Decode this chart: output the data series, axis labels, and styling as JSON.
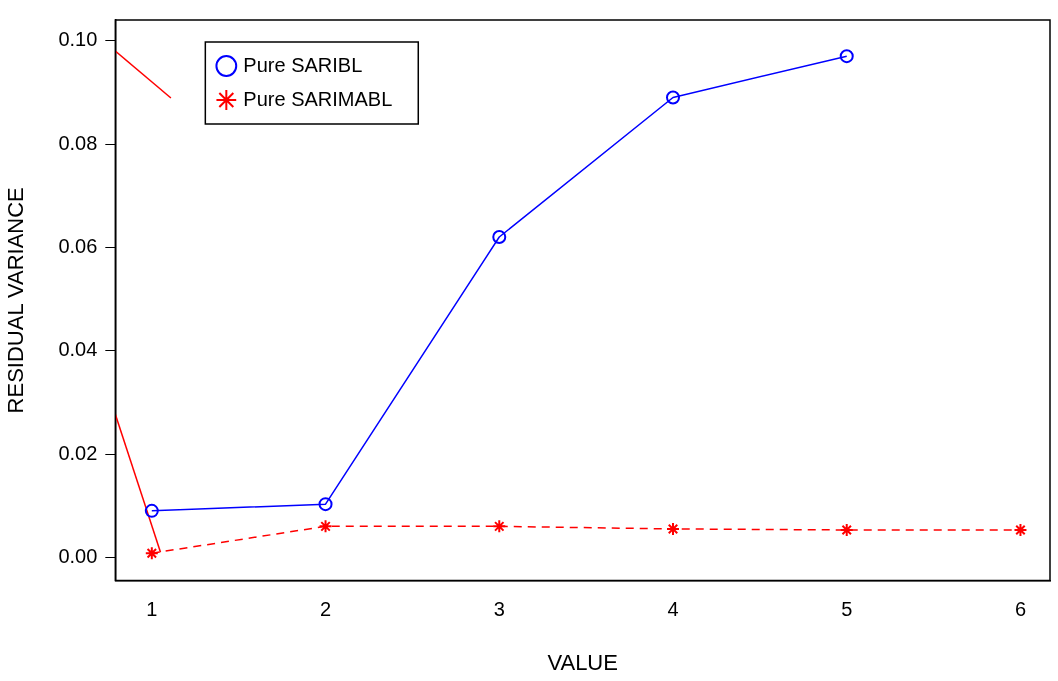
{
  "chart_data": {
    "type": "line",
    "xlabel": "VALUE",
    "ylabel": "RESIDUAL VARIANCE",
    "x": [
      1,
      2,
      3,
      4,
      5,
      6
    ],
    "xlim": [
      0.79,
      6.17
    ],
    "xticks": [
      1,
      2,
      3,
      4,
      5,
      6
    ],
    "ylim": [
      -0.0045,
      0.104
    ],
    "yticks": [
      {
        "value": 0,
        "label": "0.00"
      },
      {
        "value": 0.02,
        "label": "0.02"
      },
      {
        "value": 0.04,
        "label": "0.04"
      },
      {
        "value": 0.06,
        "label": "0.06"
      },
      {
        "value": 0.08,
        "label": "0.08"
      },
      {
        "value": 0.1,
        "label": "0.10"
      }
    ],
    "grid": false,
    "legend": "top left",
    "series": [
      {
        "name": "Pure SARIBL",
        "color": "#0000ff",
        "values": [
          0.009,
          0.0103,
          0.062,
          0.089,
          0.097,
          null
        ],
        "marker": "circle",
        "line_style": "solid"
      },
      {
        "name": "Pure SARIMABL",
        "color": "#ff0000",
        "values": [
          0.0008,
          0.006,
          0.006,
          0.0055,
          0.0053,
          0.0053
        ],
        "marker": "cross",
        "line_style": "dashed"
      },
      {
        "color": "#ff0000",
        "x": [
          0.79,
          1.11
        ],
        "values": [
          0.098,
          0.0889
        ],
        "marker": "none",
        "line_style": "solid"
      },
      {
        "color": "#ff0000",
        "x": [
          0.79,
          1.05
        ],
        "values": [
          0.0277,
          0.001
        ],
        "marker": "none",
        "line_style": "solid"
      }
    ]
  }
}
